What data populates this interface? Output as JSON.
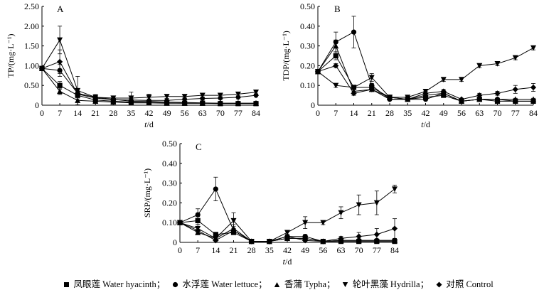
{
  "chart_data": [
    {
      "type": "line",
      "panel_label": "A",
      "xlabel_italic": "t",
      "xlabel_rest": "/d",
      "ylabel": "TP/(mg·L⁻¹)",
      "x": [
        0,
        7,
        14,
        21,
        28,
        35,
        42,
        49,
        56,
        63,
        70,
        77,
        84
      ],
      "x_ticks": [
        "0",
        "7",
        "14",
        "21",
        "28",
        "35",
        "42",
        "49",
        "56",
        "63",
        "70",
        "77",
        "84"
      ],
      "y_ticks": [
        "0",
        "0.50",
        "1.00",
        "1.50",
        "2.00",
        "2.50"
      ],
      "ylim": [
        0,
        2.5
      ],
      "series": [
        {
          "name": "Water hyacinth",
          "marker": "square",
          "values": [
            0.93,
            0.5,
            0.25,
            0.13,
            0.1,
            0.08,
            0.07,
            0.06,
            0.05,
            0.05,
            0.04,
            0.04,
            0.04
          ],
          "err": [
            0,
            0.1,
            0.06,
            0.03,
            0.02,
            0.02,
            0.02,
            0.02,
            0.02,
            0.02,
            0.02,
            0.02,
            0.02
          ]
        },
        {
          "name": "Water lettuce",
          "marker": "circle",
          "values": [
            0.93,
            0.88,
            0.3,
            0.2,
            0.15,
            0.1,
            0.1,
            0.08,
            0.07,
            0.06,
            0.05,
            0.05,
            0.05
          ],
          "err": [
            0,
            0.15,
            0.06,
            0.04,
            0.03,
            0.02,
            0.02,
            0.02,
            0.02,
            0.02,
            0.02,
            0.02,
            0.02
          ]
        },
        {
          "name": "Typha",
          "marker": "triangle-up",
          "values": [
            0.93,
            0.35,
            0.12,
            0.1,
            0.08,
            0.06,
            0.06,
            0.05,
            0.05,
            0.05,
            0.05,
            0.05,
            0.05
          ],
          "err": [
            0,
            0.08,
            0.04,
            0.03,
            0.02,
            0.02,
            0.02,
            0.02,
            0.02,
            0.02,
            0.02,
            0.02,
            0.02
          ]
        },
        {
          "name": "Hydrilla",
          "marker": "triangle-down",
          "values": [
            0.93,
            1.65,
            0.37,
            0.2,
            0.18,
            0.18,
            0.2,
            0.22,
            0.22,
            0.25,
            0.25,
            0.28,
            0.33
          ],
          "err": [
            0,
            0.35,
            0.36,
            0.07,
            0.05,
            0.15,
            0.08,
            0.05,
            0.05,
            0.05,
            0.05,
            0.05,
            0.05
          ]
        },
        {
          "name": "Control",
          "marker": "diamond",
          "values": [
            0.93,
            1.1,
            0.28,
            0.18,
            0.14,
            0.13,
            0.12,
            0.12,
            0.15,
            0.17,
            0.18,
            0.2,
            0.25
          ],
          "err": [
            0,
            0.3,
            0.08,
            0.05,
            0.04,
            0.04,
            0.04,
            0.04,
            0.04,
            0.04,
            0.04,
            0.04,
            0.04
          ]
        }
      ]
    },
    {
      "type": "line",
      "panel_label": "B",
      "xlabel_italic": "t",
      "xlabel_rest": "/d",
      "ylabel": "TDP/(mg·L⁻¹)",
      "x": [
        0,
        7,
        14,
        21,
        28,
        35,
        42,
        49,
        56,
        63,
        70,
        77,
        84
      ],
      "x_ticks": [
        "0",
        "7",
        "14",
        "21",
        "28",
        "35",
        "42",
        "49",
        "56",
        "63",
        "70",
        "77",
        "84"
      ],
      "y_ticks": [
        "0",
        "0.10",
        "0.20",
        "0.30",
        "0.40",
        "0.50"
      ],
      "ylim": [
        0,
        0.5
      ],
      "series": [
        {
          "name": "Water hyacinth",
          "marker": "square",
          "values": [
            0.17,
            0.25,
            0.09,
            0.09,
            0.04,
            0.03,
            0.04,
            0.05,
            0.02,
            0.03,
            0.02,
            0.02,
            0.02
          ],
          "err": [
            0,
            0.02,
            0.01,
            0.01,
            0.005,
            0.005,
            0.005,
            0.005,
            0.005,
            0.005,
            0.005,
            0.005,
            0.005
          ]
        },
        {
          "name": "Water lettuce",
          "marker": "circle",
          "values": [
            0.17,
            0.32,
            0.37,
            0.1,
            0.03,
            0.03,
            0.03,
            0.06,
            0.02,
            0.03,
            0.03,
            0.02,
            0.02
          ],
          "err": [
            0,
            0.05,
            0.08,
            0.01,
            0.005,
            0.005,
            0.005,
            0.005,
            0.005,
            0.005,
            0.005,
            0.005,
            0.005
          ]
        },
        {
          "name": "Typha",
          "marker": "triangle-up",
          "values": [
            0.17,
            0.3,
            0.07,
            0.08,
            0.04,
            0.03,
            0.05,
            0.06,
            0.02,
            0.03,
            0.03,
            0.03,
            0.03
          ],
          "err": [
            0,
            0.03,
            0.01,
            0.01,
            0.005,
            0.005,
            0.005,
            0.005,
            0.005,
            0.005,
            0.005,
            0.005,
            0.005
          ]
        },
        {
          "name": "Hydrilla",
          "marker": "triangle-down",
          "values": [
            0.17,
            0.1,
            0.09,
            0.14,
            0.04,
            0.04,
            0.07,
            0.13,
            0.13,
            0.2,
            0.21,
            0.24,
            0.29
          ],
          "err": [
            0,
            0.01,
            0.01,
            0.02,
            0.005,
            0.005,
            0.01,
            0.01,
            0.01,
            0.01,
            0.01,
            0.01,
            0.01
          ]
        },
        {
          "name": "Control",
          "marker": "diamond",
          "values": [
            0.17,
            0.2,
            0.06,
            0.08,
            0.03,
            0.03,
            0.06,
            0.07,
            0.03,
            0.05,
            0.06,
            0.08,
            0.09
          ],
          "err": [
            0,
            0.01,
            0.01,
            0.01,
            0.005,
            0.005,
            0.01,
            0.01,
            0.005,
            0.01,
            0.01,
            0.02,
            0.02
          ]
        }
      ]
    },
    {
      "type": "line",
      "panel_label": "C",
      "xlabel_italic": "t",
      "xlabel_rest": "/d",
      "ylabel": "SRP/(mg·L⁻¹)",
      "x": [
        0,
        7,
        14,
        21,
        28,
        35,
        42,
        49,
        56,
        63,
        70,
        77,
        84
      ],
      "x_ticks": [
        "0",
        "7",
        "14",
        "21",
        "28",
        "35",
        "42",
        "49",
        "56",
        "63",
        "70",
        "77",
        "84"
      ],
      "y_ticks": [
        "0",
        "0.10",
        "0.20",
        "0.30",
        "0.40",
        "0.50"
      ],
      "ylim": [
        0,
        0.5
      ],
      "series": [
        {
          "name": "Water hyacinth",
          "marker": "square",
          "values": [
            0.1,
            0.11,
            0.04,
            0.05,
            0.005,
            0.005,
            0.02,
            0.02,
            0.005,
            0.005,
            0.005,
            0.005,
            0.005
          ],
          "err": [
            0,
            0.02,
            0.01,
            0.01,
            0.003,
            0.003,
            0.005,
            0.005,
            0.003,
            0.003,
            0.003,
            0.003,
            0.003
          ]
        },
        {
          "name": "Water lettuce",
          "marker": "circle",
          "values": [
            0.1,
            0.14,
            0.27,
            0.06,
            0.005,
            0.005,
            0.03,
            0.03,
            0.005,
            0.01,
            0.01,
            0.01,
            0.01
          ],
          "err": [
            0,
            0.03,
            0.06,
            0.01,
            0.003,
            0.003,
            0.01,
            0.01,
            0.003,
            0.003,
            0.003,
            0.003,
            0.003
          ]
        },
        {
          "name": "Typha",
          "marker": "triangle-up",
          "values": [
            0.1,
            0.05,
            0.02,
            0.07,
            0.005,
            0.005,
            0.02,
            0.02,
            0.005,
            0.01,
            0.01,
            0.01,
            0.01
          ],
          "err": [
            0,
            0.01,
            0.01,
            0.02,
            0.003,
            0.003,
            0.005,
            0.005,
            0.003,
            0.003,
            0.003,
            0.003,
            0.003
          ]
        },
        {
          "name": "Hydrilla",
          "marker": "triangle-down",
          "values": [
            0.1,
            0.07,
            0.02,
            0.11,
            0.005,
            0.005,
            0.05,
            0.1,
            0.1,
            0.15,
            0.19,
            0.2,
            0.27
          ],
          "err": [
            0,
            0.02,
            0.01,
            0.04,
            0.003,
            0.003,
            0.01,
            0.03,
            0.01,
            0.03,
            0.05,
            0.06,
            0.02
          ]
        },
        {
          "name": "Control",
          "marker": "diamond",
          "values": [
            0.1,
            0.06,
            0.01,
            0.06,
            0.005,
            0.005,
            0.03,
            0.01,
            0.005,
            0.02,
            0.03,
            0.04,
            0.07
          ],
          "err": [
            0,
            0.02,
            0.01,
            0.02,
            0.003,
            0.003,
            0.01,
            0.005,
            0.003,
            0.01,
            0.02,
            0.03,
            0.05
          ]
        }
      ]
    }
  ],
  "legend": [
    {
      "marker": "square",
      "label": "凤眼莲 Water hyacinth；"
    },
    {
      "marker": "circle",
      "label": "水浮莲 Water lettuce；"
    },
    {
      "marker": "triangle-up",
      "label": "香蒲 Typha；"
    },
    {
      "marker": "triangle-down",
      "label": "轮叶黑藻 Hydrilla；"
    },
    {
      "marker": "diamond",
      "label": "对照 Control"
    }
  ]
}
